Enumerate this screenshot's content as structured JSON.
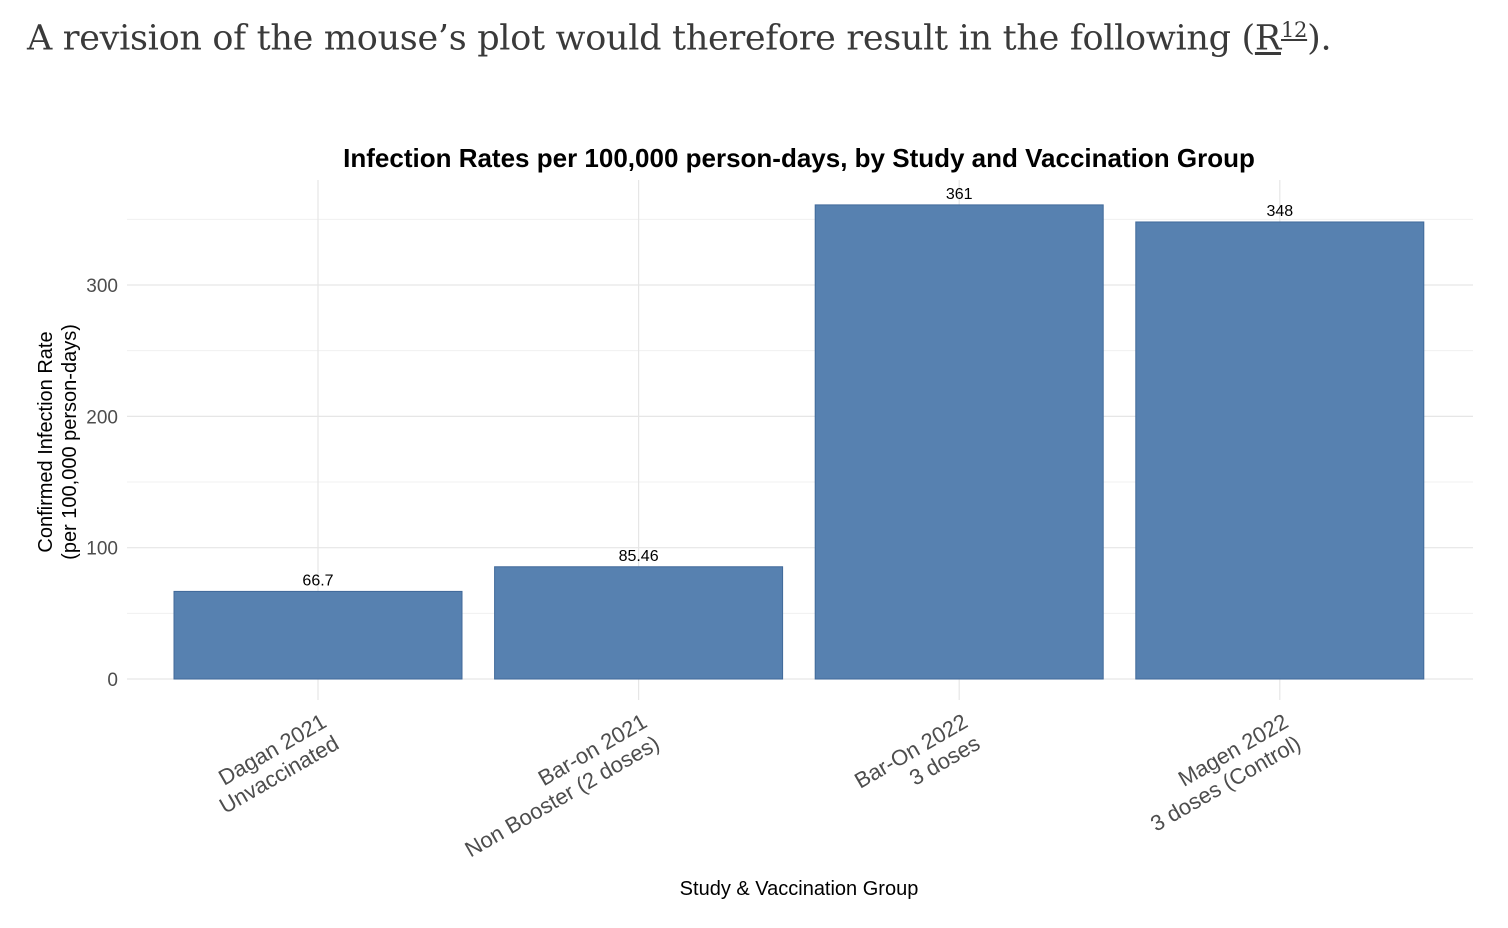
{
  "lead": {
    "text": "A revision of the mouse’s plot would therefore result in the following (",
    "link_label": "R",
    "footnote": "12",
    "end": ")."
  },
  "chart_data": {
    "type": "bar",
    "title": "Infection Rates per 100,000 person-days, by Study and Vaccination Group",
    "xlabel": "Study & Vaccination Group",
    "ylabel": [
      "Confirmed Infection Rate",
      "(per 100,000 person-days)"
    ],
    "categories": [
      [
        "Dagan 2021",
        "Unvaccinated"
      ],
      [
        "Bar-on 2021",
        "Non Booster (2 doses)"
      ],
      [
        "Bar-On 2022",
        "3 doses"
      ],
      [
        "Magen 2022",
        "3 doses (Control)"
      ]
    ],
    "values": [
      66.7,
      85.46,
      361,
      348
    ],
    "value_labels": [
      "66.7",
      "85.46",
      "361",
      "348"
    ],
    "yticks": [
      0,
      100,
      200,
      300
    ],
    "ytick_labels": [
      "0",
      "100",
      "200",
      "300"
    ],
    "ylim": [
      0,
      380
    ],
    "grid": true,
    "bar_color": "#5781b0",
    "bar_edge": "#40699a"
  }
}
